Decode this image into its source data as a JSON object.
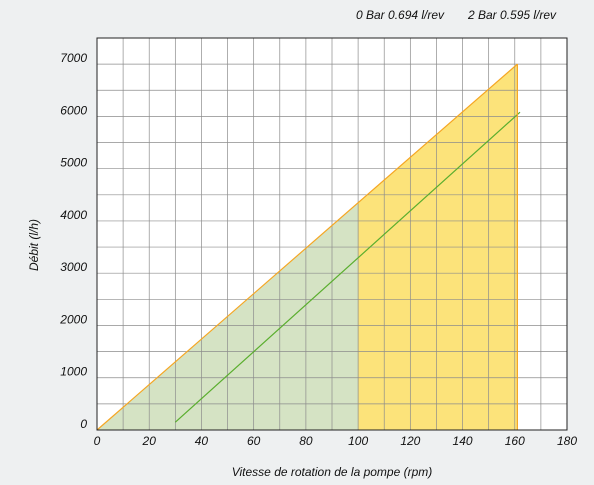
{
  "legend": {
    "entry_1": "0 Bar 0.694 l/rev",
    "entry_2": "2 Bar 0.595 l/rev"
  },
  "chart_data": {
    "type": "area",
    "title": "",
    "xlabel": "Vitesse de rotation de la pompe (rpm)",
    "ylabel": "Débit (l/h)",
    "xlim": [
      0,
      180
    ],
    "ylim": [
      0,
      7500
    ],
    "x_ticks": [
      "0",
      "20",
      "40",
      "60",
      "80",
      "100",
      "120",
      "140",
      "160",
      "180"
    ],
    "y_ticks": [
      "0",
      "1000",
      "2000",
      "3000",
      "4000",
      "5000",
      "6000",
      "7000"
    ],
    "grid": true,
    "legend_position": "top-right",
    "series": [
      {
        "name": "0 Bar 0.694 l/rev",
        "x": [
          0,
          161
        ],
        "y": [
          0,
          7000
        ],
        "color": "#f5a623",
        "fill": "#fce37a"
      },
      {
        "name": "2 Bar 0.595 l/rev",
        "x": [
          30,
          162
        ],
        "y": [
          150,
          6080
        ],
        "color": "#5aae2e"
      }
    ],
    "highlight_region": {
      "x": [
        0,
        100
      ],
      "fill": "#d5e3c4"
    }
  }
}
